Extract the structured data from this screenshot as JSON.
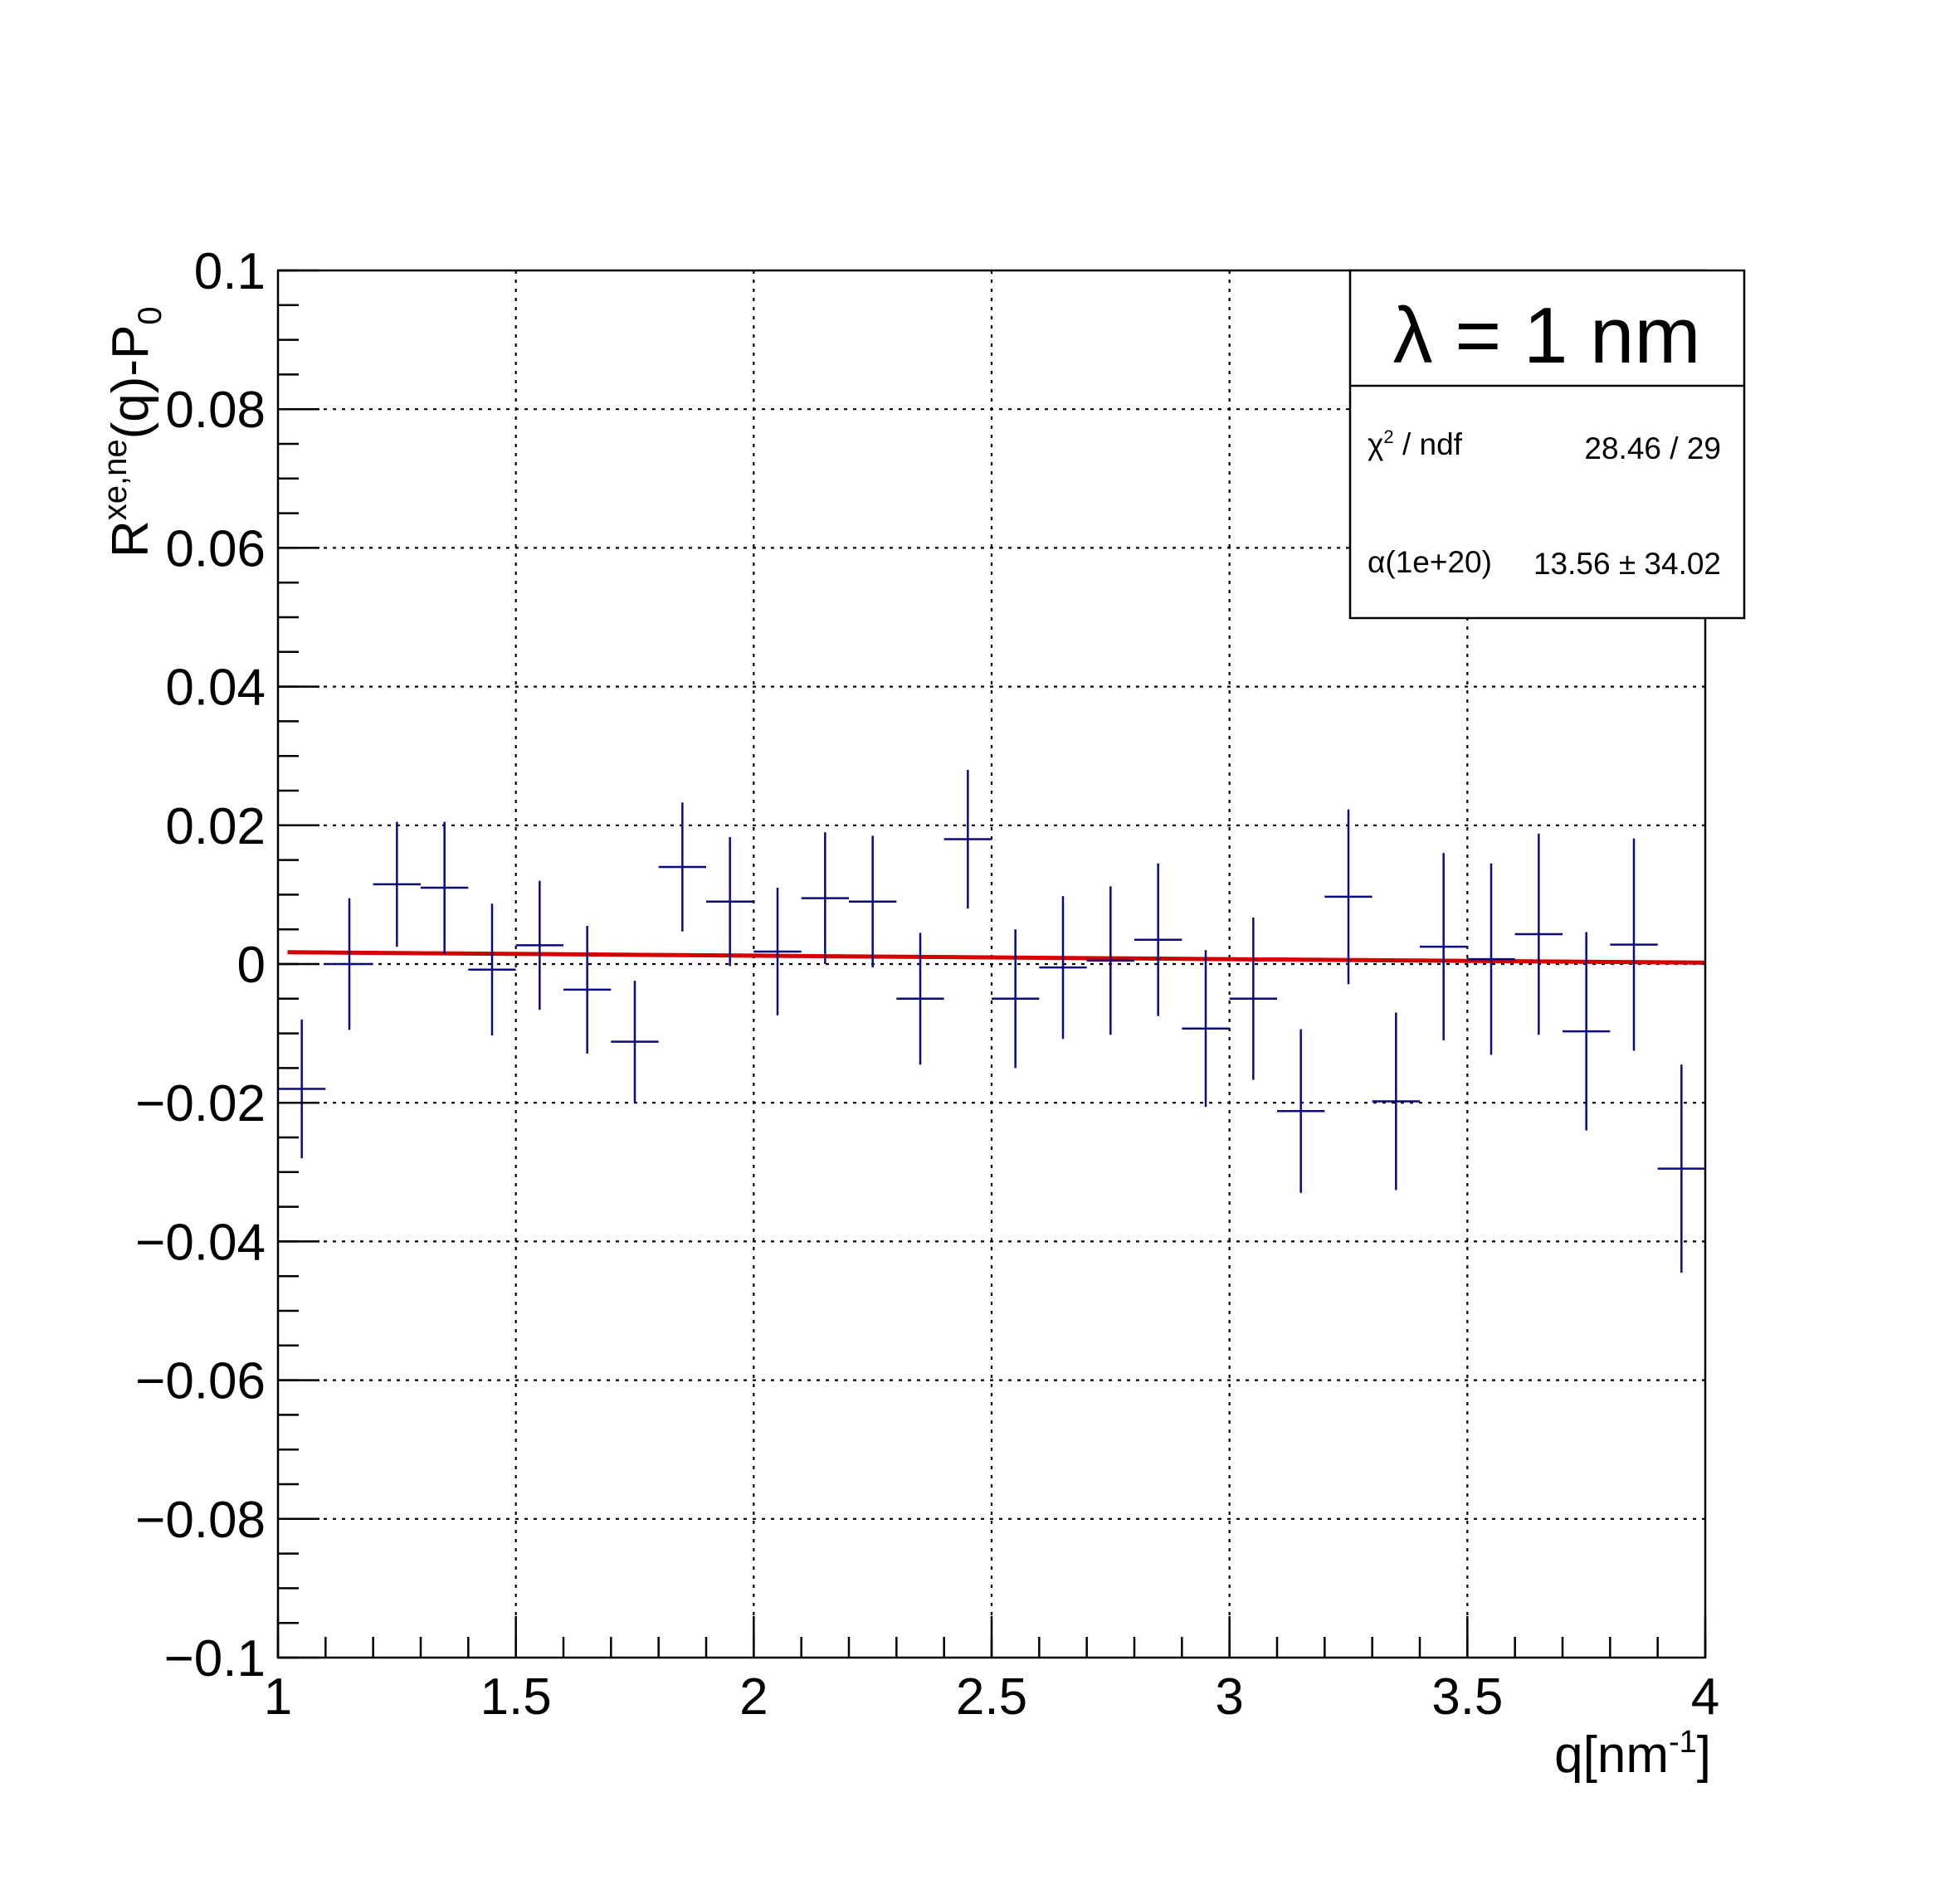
{
  "chart_data": {
    "type": "scatter",
    "xlabel": "q[nm",
    "xlabel_sup": "-1",
    "xlabel_end": "]",
    "ylabel": "R",
    "ylabel_sup": "xe,ne",
    "ylabel_mid": "(q)-P",
    "ylabel_sub": "0",
    "xlim": [
      1,
      4
    ],
    "ylim": [
      -0.1,
      0.1
    ],
    "grid": true,
    "x_ticks": [
      "1",
      "1.5",
      "2",
      "2.5",
      "3",
      "3.5",
      "4"
    ],
    "y_ticks": [
      "−0.1",
      "−0.08",
      "−0.06",
      "−0.04",
      "−0.02",
      "0",
      "0.02",
      "0.04",
      "0.06",
      "0.08",
      "0.1"
    ],
    "colors": {
      "data": "#0b0b7e",
      "fit": "#d40000"
    },
    "series": [
      {
        "x": [
          1.05,
          1.15,
          1.25,
          1.35,
          1.45,
          1.55,
          1.65,
          1.75,
          1.85,
          1.95,
          2.05,
          2.15,
          2.25,
          2.35,
          2.45,
          2.55,
          2.65,
          2.75,
          2.85,
          2.95,
          3.05,
          3.15,
          3.25,
          3.35,
          3.45,
          3.55,
          3.65,
          3.75,
          3.85,
          3.95
        ],
        "y": [
          -0.018,
          0.0,
          0.0115,
          0.011,
          -0.0008,
          0.0027,
          -0.0037,
          -0.0112,
          0.014,
          0.009,
          0.0018,
          0.0095,
          0.009,
          -0.005,
          0.018,
          -0.005,
          -0.0005,
          0.0005,
          0.0035,
          -0.0093,
          -0.005,
          -0.0212,
          0.0097,
          -0.0198,
          0.0025,
          0.0007,
          0.0043,
          -0.0097,
          0.0028,
          -0.0295
        ],
        "y_err": [
          0.01,
          0.0095,
          0.009,
          0.0095,
          0.0095,
          0.0093,
          0.0092,
          0.0088,
          0.0093,
          0.0093,
          0.0092,
          0.0095,
          0.0095,
          0.0095,
          0.01,
          0.01,
          0.0103,
          0.0107,
          0.011,
          0.0113,
          0.0117,
          0.0118,
          0.0126,
          0.0128,
          0.0135,
          0.0138,
          0.0145,
          0.0143,
          0.0153,
          0.015
        ],
        "x_err": 0.05
      }
    ],
    "fit": {
      "x": [
        1.02,
        4.0
      ],
      "y": [
        0.0017,
        0.0002
      ]
    }
  },
  "stats": {
    "title": "λ = 1 nm",
    "chi2_label": "χ",
    "chi2_sup": "2",
    "chi2_label_end": " / ndf",
    "chi2_value": "28.46 / 29",
    "alpha_label": "α(1e+20)",
    "alpha_value": "13.56 ± 34.02"
  }
}
